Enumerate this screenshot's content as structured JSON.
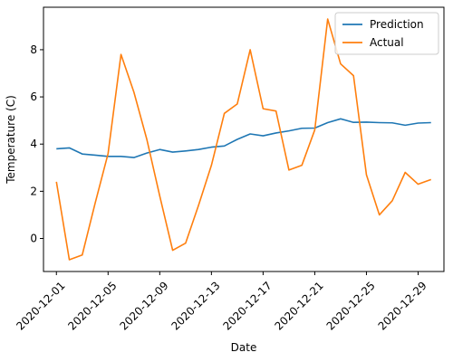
{
  "chart_data": {
    "type": "line",
    "title": "",
    "xlabel": "Date",
    "ylabel": "Temperature (C)",
    "x_start": "2020-12-01",
    "x": [
      "2020-12-01",
      "2020-12-02",
      "2020-12-03",
      "2020-12-04",
      "2020-12-05",
      "2020-12-06",
      "2020-12-07",
      "2020-12-08",
      "2020-12-09",
      "2020-12-10",
      "2020-12-11",
      "2020-12-12",
      "2020-12-13",
      "2020-12-14",
      "2020-12-15",
      "2020-12-16",
      "2020-12-17",
      "2020-12-18",
      "2020-12-19",
      "2020-12-20",
      "2020-12-21",
      "2020-12-22",
      "2020-12-23",
      "2020-12-24",
      "2020-12-25",
      "2020-12-26",
      "2020-12-27",
      "2020-12-28",
      "2020-12-29",
      "2020-12-30"
    ],
    "xlim": [
      "2020-11-30",
      "2020-12-31"
    ],
    "ylim": [
      -1.4,
      9.8
    ],
    "xticks": [
      "2020-12-01",
      "2020-12-05",
      "2020-12-09",
      "2020-12-13",
      "2020-12-17",
      "2020-12-21",
      "2020-12-25",
      "2020-12-29"
    ],
    "yticks": [
      0,
      2,
      4,
      6,
      8
    ],
    "grid": false,
    "legend_position": "top-right",
    "series": [
      {
        "name": "Prediction",
        "color": "#1f77b4",
        "values": [
          3.8,
          3.84,
          3.58,
          3.53,
          3.48,
          3.48,
          3.43,
          3.62,
          3.77,
          3.66,
          3.71,
          3.77,
          3.87,
          3.92,
          4.2,
          4.43,
          4.35,
          4.47,
          4.56,
          4.67,
          4.68,
          4.91,
          5.07,
          4.92,
          4.93,
          4.91,
          4.9,
          4.8,
          4.89,
          4.91
        ]
      },
      {
        "name": "Actual",
        "color": "#ff7f0e",
        "values": [
          2.4,
          -0.9,
          -0.7,
          1.5,
          3.6,
          7.8,
          6.2,
          4.2,
          1.8,
          -0.5,
          -0.2,
          1.4,
          3.1,
          5.3,
          5.7,
          8.0,
          5.5,
          5.4,
          2.9,
          3.1,
          4.6,
          9.3,
          7.4,
          6.9,
          2.7,
          1.0,
          1.6,
          2.8,
          2.3,
          2.5
        ]
      }
    ]
  }
}
